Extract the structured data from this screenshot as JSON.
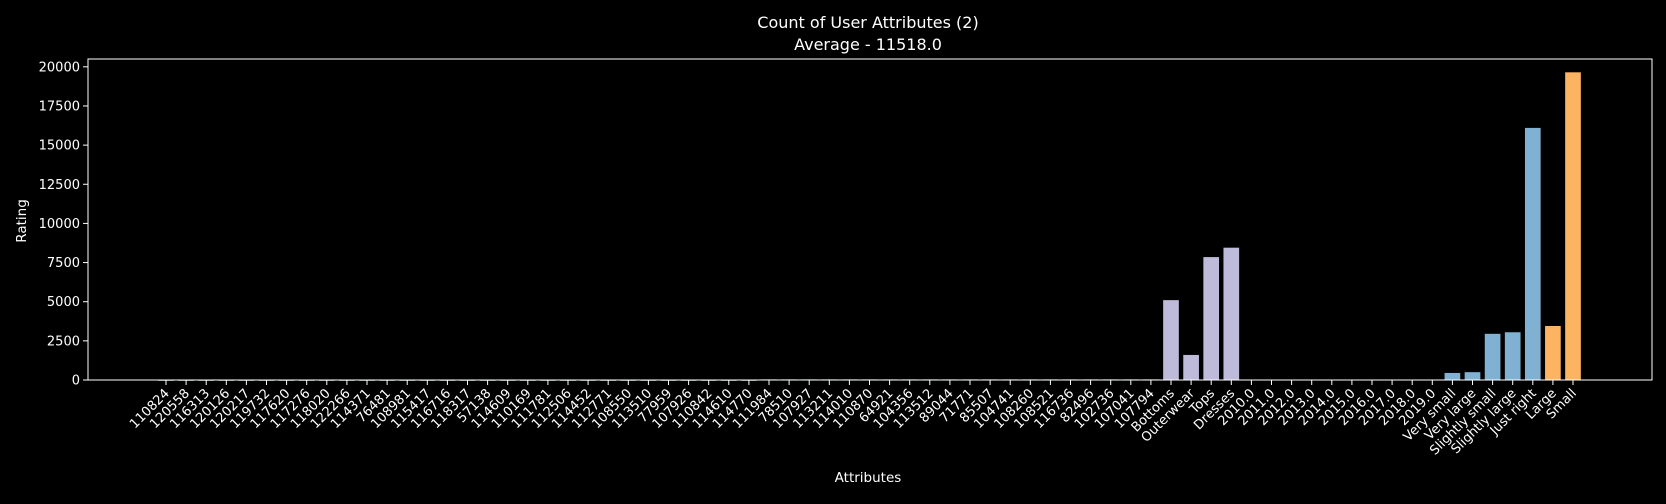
{
  "chart_data": {
    "type": "bar",
    "title": "Count of User Attributes (2)",
    "subtitle": "Average - 11518.0",
    "xlabel": "Attributes",
    "ylabel": "Rating",
    "ylim": [
      0,
      20500
    ],
    "yticks": [
      0,
      2500,
      5000,
      7500,
      10000,
      12500,
      15000,
      17500,
      20000
    ],
    "grid": false,
    "categories": [
      "110824",
      "120558",
      "116313",
      "120126",
      "120217",
      "119732",
      "117620",
      "117276",
      "118020",
      "122266",
      "114371",
      "76481",
      "108981",
      "115417",
      "116716",
      "118317",
      "57138",
      "114609",
      "110169",
      "111781",
      "112506",
      "114452",
      "112771",
      "108550",
      "113510",
      "77959",
      "107926",
      "110842",
      "114610",
      "114770",
      "111984",
      "78510",
      "107927",
      "113211",
      "114010",
      "110870",
      "64921",
      "104356",
      "113512",
      "89044",
      "71771",
      "85507",
      "104741",
      "108260",
      "108521",
      "116736",
      "82496",
      "102736",
      "107041",
      "107794",
      "Bottoms",
      "Outerwear",
      "Tops",
      "Dresses",
      "2010.0",
      "2011.0",
      "2012.0",
      "2013.0",
      "2014.0",
      "2015.0",
      "2016.0",
      "2017.0",
      "2018.0",
      "2019.0",
      "Very small",
      "Very large",
      "Slightly small",
      "Slightly large",
      "Just right",
      "Large",
      "Small"
    ],
    "values": [
      1,
      1,
      1,
      1,
      1,
      1,
      1,
      1,
      1,
      1,
      1,
      1,
      1,
      1,
      1,
      1,
      1,
      1,
      1,
      1,
      1,
      1,
      1,
      1,
      1,
      1,
      1,
      1,
      1,
      1,
      40,
      40,
      40,
      40,
      40,
      40,
      40,
      40,
      40,
      40,
      40,
      40,
      40,
      40,
      40,
      40,
      40,
      40,
      40,
      40,
      5100,
      1600,
      7850,
      8450,
      0,
      0,
      0,
      0,
      0,
      0,
      0,
      0,
      0,
      0,
      450,
      500,
      2950,
      3050,
      16100,
      3450,
      19650
    ],
    "colors": {
      "ids_low": "#8dd3c7",
      "ids_high": "#8dd3c7",
      "category": "#bebada",
      "year": "#fb8072",
      "fit": "#80b1d3",
      "size": "#fdb462",
      "axes": "#ffffff",
      "background": "#000000"
    },
    "bar_groups": [
      "ids_low",
      "ids_low",
      "ids_low",
      "ids_low",
      "ids_low",
      "ids_low",
      "ids_low",
      "ids_low",
      "ids_low",
      "ids_low",
      "ids_low",
      "ids_low",
      "ids_low",
      "ids_low",
      "ids_low",
      "ids_low",
      "ids_low",
      "ids_low",
      "ids_low",
      "ids_low",
      "ids_low",
      "ids_low",
      "ids_low",
      "ids_low",
      "ids_low",
      "ids_low",
      "ids_low",
      "ids_low",
      "ids_low",
      "ids_low",
      "ids_high",
      "ids_high",
      "ids_high",
      "ids_high",
      "ids_high",
      "ids_high",
      "ids_high",
      "ids_high",
      "ids_high",
      "ids_high",
      "ids_high",
      "ids_high",
      "ids_high",
      "ids_high",
      "ids_high",
      "ids_high",
      "ids_high",
      "ids_high",
      "ids_high",
      "ids_high",
      "category",
      "category",
      "category",
      "category",
      "year",
      "year",
      "year",
      "year",
      "year",
      "year",
      "year",
      "year",
      "year",
      "year",
      "fit",
      "fit",
      "fit",
      "fit",
      "fit",
      "size",
      "size"
    ]
  }
}
